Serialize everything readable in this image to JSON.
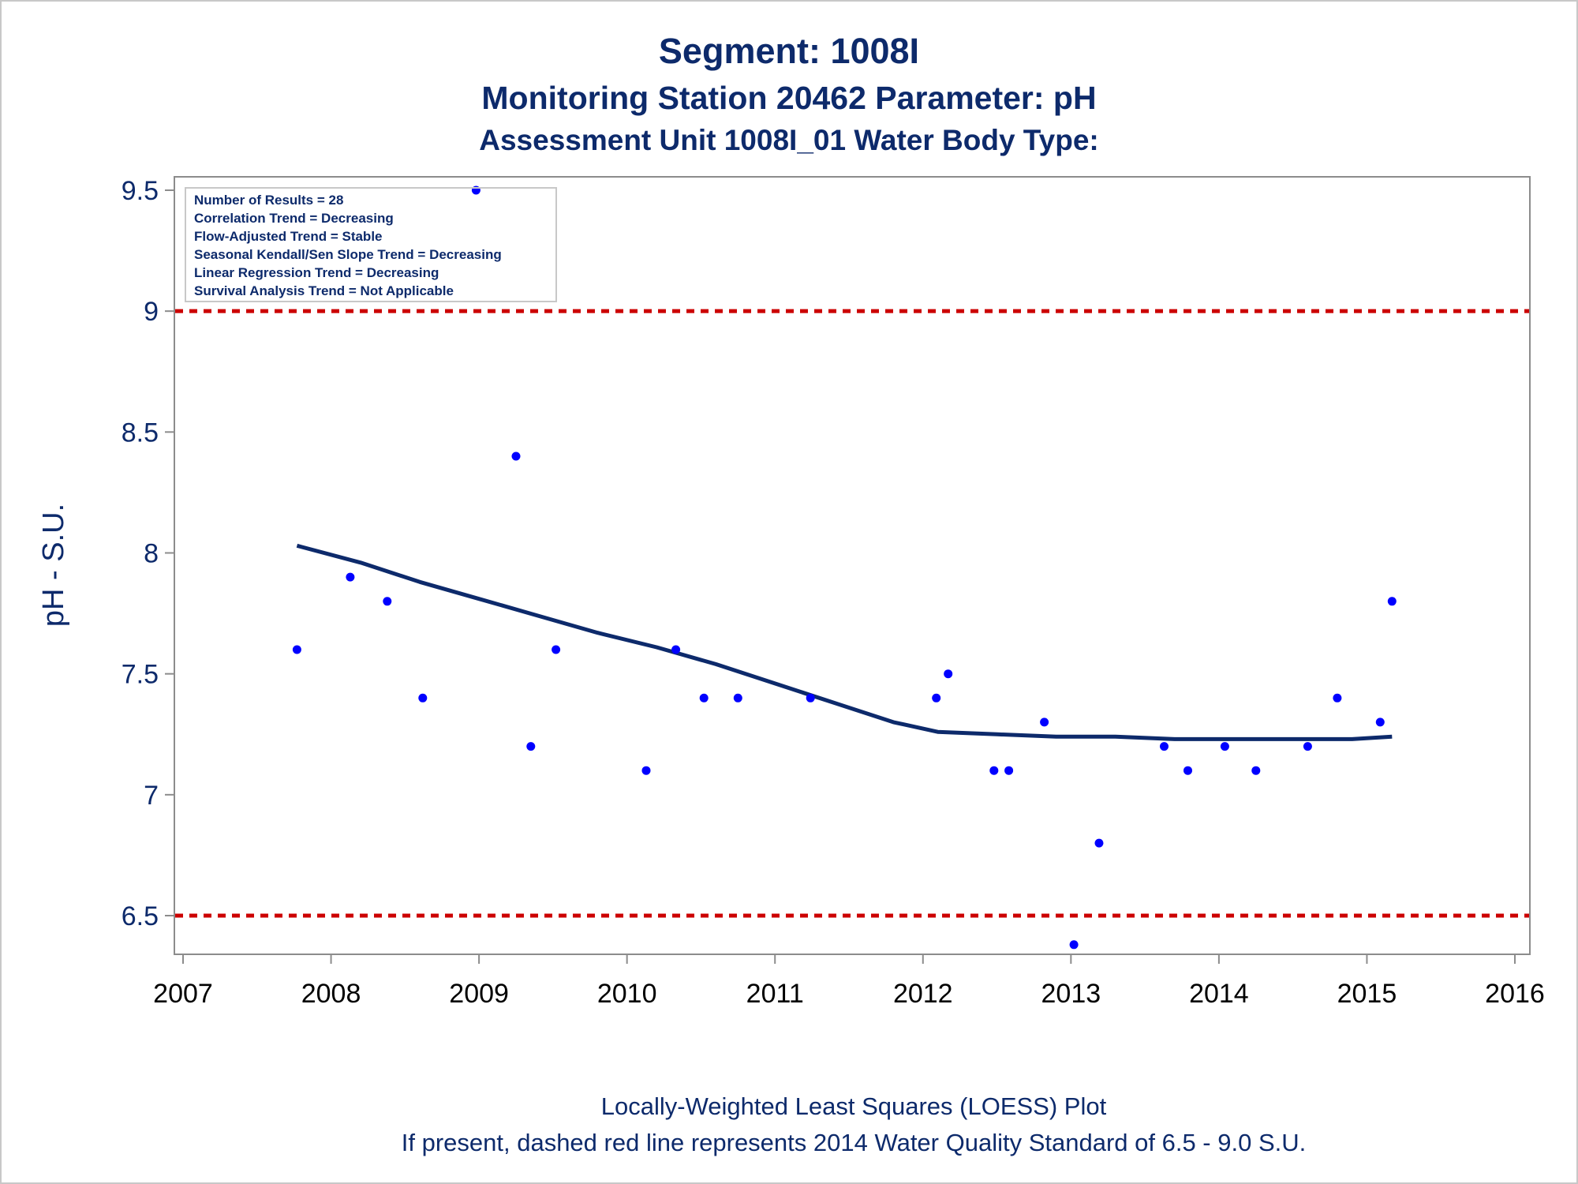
{
  "titles": {
    "line1": "Segment: 1008I",
    "line2": "Monitoring Station 20462 Parameter: pH",
    "line3": "Assessment Unit 1008I_01    Water Body Type:"
  },
  "footnotes": {
    "line1": "Locally-Weighted Least Squares (LOESS) Plot",
    "line2": "If present, dashed red line represents 2014 Water Quality Standard of 6.5 - 9.0 S.U."
  },
  "stats_box": [
    "Number of Results = 28",
    "Correlation Trend = Decreasing",
    "Flow-Adjusted Trend = Stable",
    "Seasonal Kendall/Sen Slope Trend = Decreasing",
    "Linear Regression Trend = Decreasing",
    "Survival Analysis Trend = Not Applicable"
  ],
  "colors": {
    "points": "#0000ff",
    "loess": "#0d2a6b",
    "standard": "#cc0000",
    "text": "#0d2a6b",
    "axis": "#8c8c8c"
  },
  "chart_data": {
    "type": "scatter",
    "title": "Segment: 1008I",
    "xlabel": "",
    "ylabel": "pH - S.U.",
    "xlim": [
      2007,
      2016
    ],
    "ylim": [
      6.35,
      9.55
    ],
    "x_ticks": [
      2007,
      2008,
      2009,
      2010,
      2011,
      2012,
      2013,
      2014,
      2015,
      2016
    ],
    "y_ticks": [
      6.5,
      7,
      7.5,
      8,
      8.5,
      9,
      9.5
    ],
    "y_tick_labels": [
      "6.5",
      "7",
      "7.5",
      "8",
      "8.5",
      "9",
      "9.5"
    ],
    "grid": false,
    "legend": "top-left",
    "series": [
      {
        "name": "pH",
        "kind": "scatter",
        "x": [
          2007.77,
          2008.13,
          2008.38,
          2008.62,
          2008.98,
          2009.25,
          2009.35,
          2009.52,
          2010.13,
          2010.33,
          2010.52,
          2010.75,
          2011.24,
          2012.09,
          2012.17,
          2012.48,
          2012.58,
          2012.82,
          2013.02,
          2013.19,
          2013.63,
          2013.79,
          2014.04,
          2014.25,
          2014.6,
          2014.8,
          2015.09,
          2015.17
        ],
        "y": [
          7.6,
          7.9,
          7.8,
          7.4,
          9.5,
          8.4,
          7.2,
          7.6,
          7.1,
          7.6,
          7.4,
          7.4,
          7.4,
          7.4,
          7.5,
          7.1,
          7.1,
          7.3,
          6.38,
          6.8,
          7.2,
          7.1,
          7.2,
          7.1,
          7.2,
          7.4,
          7.3,
          7.8
        ]
      },
      {
        "kind": "line",
        "x": [
          2007.77,
          2008.2,
          2008.6,
          2009.0,
          2009.4,
          2009.8,
          2010.2,
          2010.6,
          2011.0,
          2011.4,
          2011.8,
          2012.1,
          2012.5,
          2012.9,
          2013.3,
          2013.7,
          2014.1,
          2014.5,
          2014.9,
          2015.17
        ],
        "y": [
          8.03,
          7.96,
          7.88,
          7.81,
          7.74,
          7.67,
          7.61,
          7.54,
          7.46,
          7.38,
          7.3,
          7.26,
          7.25,
          7.24,
          7.24,
          7.23,
          7.23,
          7.23,
          7.23,
          7.24
        ]
      }
    ],
    "reference_lines": [
      {
        "y": 9.0
      },
      {
        "y": 6.5
      }
    ]
  }
}
